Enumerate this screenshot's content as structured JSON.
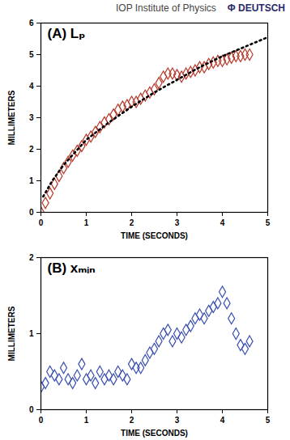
{
  "header": {
    "publisher": "IOP Institute of Physics",
    "partner": "Φ DEUTSCH"
  },
  "chart_data": [
    {
      "type": "scatter",
      "title": "(A) Lₚ",
      "x_label": "TIME (SECONDS)",
      "y_label": "MILLIMETERS",
      "xlim": [
        0,
        5
      ],
      "ylim": [
        0,
        6
      ],
      "xticks": [
        0,
        1,
        2,
        3,
        4,
        5
      ],
      "yticks": [
        0,
        1,
        2,
        3,
        4,
        5,
        6
      ],
      "grid": false,
      "series": [
        {
          "type": "scatter",
          "color": "#b8392b",
          "marker": "diamond",
          "x": [
            0,
            0.1,
            0.2,
            0.3,
            0.4,
            0.5,
            0.6,
            0.7,
            0.8,
            0.9,
            1.0,
            1.1,
            1.2,
            1.3,
            1.4,
            1.5,
            1.6,
            1.7,
            1.8,
            1.9,
            2.0,
            2.1,
            2.2,
            2.3,
            2.4,
            2.5,
            2.6,
            2.7,
            2.8,
            2.9,
            3.0,
            3.1,
            3.2,
            3.3,
            3.4,
            3.5,
            3.6,
            3.7,
            3.8,
            3.9,
            4.0,
            4.1,
            4.2,
            4.3,
            4.4,
            4.5,
            4.6
          ],
          "values": [
            0,
            0.3,
            0.6,
            0.9,
            1.15,
            1.4,
            1.6,
            1.8,
            1.95,
            2.1,
            2.3,
            2.4,
            2.55,
            2.7,
            2.85,
            2.95,
            3.1,
            3.25,
            3.35,
            3.4,
            3.5,
            3.5,
            3.6,
            3.7,
            3.8,
            3.9,
            4.1,
            4.3,
            4.4,
            4.4,
            4.35,
            4.3,
            4.4,
            4.45,
            4.5,
            4.6,
            4.6,
            4.7,
            4.75,
            4.8,
            4.8,
            4.85,
            4.9,
            4.95,
            4.95,
            5.0,
            5.0
          ]
        },
        {
          "type": "line",
          "color": "#000000",
          "line_style": "dotted",
          "x": [
            0.05,
            0.25,
            0.5,
            1.0,
            1.5,
            2.0,
            2.5,
            3.0,
            3.5,
            4.0,
            4.5,
            5.0
          ],
          "values": [
            0.5,
            1.0,
            1.5,
            2.3,
            2.85,
            3.35,
            3.8,
            4.2,
            4.6,
            4.95,
            5.25,
            5.55
          ]
        }
      ]
    },
    {
      "type": "scatter",
      "title": "(B) xₘᵢₙ",
      "x_label": "TIME (SECONDS)",
      "y_label": "MILLIMETERS",
      "xlim": [
        0,
        5
      ],
      "ylim": [
        0,
        2
      ],
      "xticks": [
        0,
        1,
        2,
        3,
        4,
        5
      ],
      "yticks": [
        0,
        1,
        2
      ],
      "grid": false,
      "series": [
        {
          "type": "scatter",
          "color": "#3a4fb0",
          "marker": "diamond",
          "x": [
            0,
            0.1,
            0.2,
            0.3,
            0.4,
            0.5,
            0.6,
            0.7,
            0.8,
            0.9,
            1.0,
            1.1,
            1.2,
            1.3,
            1.4,
            1.5,
            1.6,
            1.7,
            1.8,
            1.9,
            2.0,
            2.1,
            2.2,
            2.3,
            2.4,
            2.5,
            2.6,
            2.7,
            2.8,
            2.9,
            3.0,
            3.1,
            3.2,
            3.3,
            3.4,
            3.5,
            3.6,
            3.7,
            3.8,
            3.9,
            4.0,
            4.1,
            4.2,
            4.3,
            4.4,
            4.5,
            4.6
          ],
          "values": [
            0.3,
            0.35,
            0.5,
            0.45,
            0.4,
            0.55,
            0.4,
            0.35,
            0.45,
            0.6,
            0.4,
            0.45,
            0.35,
            0.5,
            0.4,
            0.45,
            0.4,
            0.5,
            0.45,
            0.4,
            0.6,
            0.55,
            0.55,
            0.65,
            0.75,
            0.8,
            0.9,
            1.0,
            1.05,
            0.9,
            1.0,
            0.95,
            1.05,
            1.1,
            1.2,
            1.25,
            1.2,
            1.3,
            1.35,
            1.4,
            1.55,
            1.4,
            1.2,
            1.0,
            0.85,
            0.8,
            0.9
          ]
        }
      ]
    }
  ]
}
